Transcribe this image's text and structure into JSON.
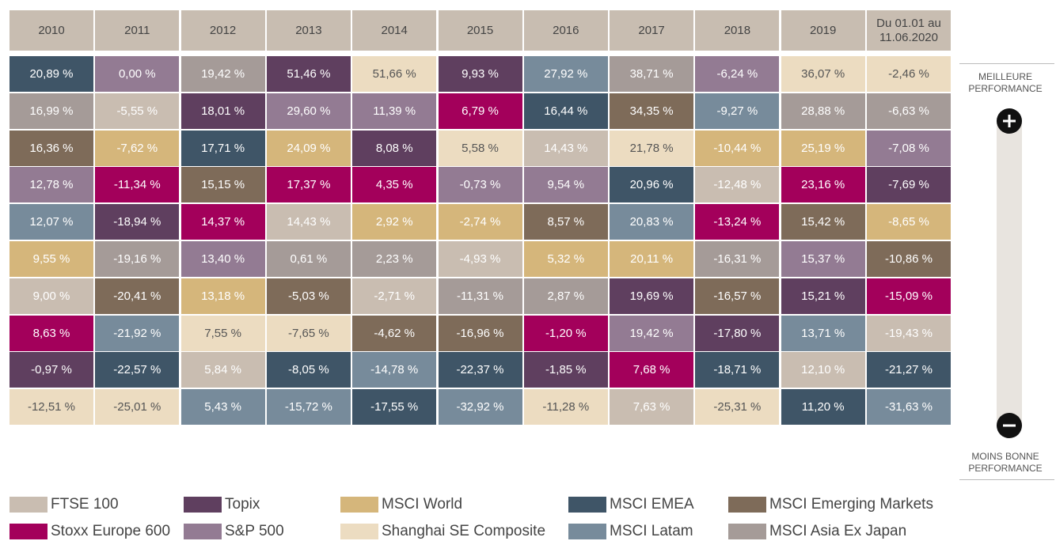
{
  "table": {
    "headers": [
      "2010",
      "2011",
      "2012",
      "2013",
      "2014",
      "2015",
      "2016",
      "2017",
      "2018",
      "2019",
      [
        "Du 01.01 au",
        "11.06.2020"
      ]
    ],
    "columns": [
      [
        [
          "20,89 %",
          3
        ],
        [
          "16,99 %",
          9
        ],
        [
          "16,36 %",
          4
        ],
        [
          "12,78 %",
          6
        ],
        [
          "12,07 %",
          8
        ],
        [
          "9,55 %",
          2
        ],
        [
          "9,00 %",
          0
        ],
        [
          "8,63 %",
          5
        ],
        [
          "-0,97 %",
          1
        ],
        [
          "-12,51 %",
          7
        ]
      ],
      [
        [
          "0,00 %",
          6
        ],
        [
          "-5,55 %",
          0
        ],
        [
          "-7,62 %",
          2
        ],
        [
          "-11,34 %",
          5
        ],
        [
          "-18,94 %",
          1
        ],
        [
          "-19,16 %",
          9
        ],
        [
          "-20,41 %",
          4
        ],
        [
          "-21,92 %",
          8
        ],
        [
          "-22,57 %",
          3
        ],
        [
          "-25,01 %",
          7
        ]
      ],
      [
        [
          "19,42 %",
          9
        ],
        [
          "18,01 %",
          1
        ],
        [
          "17,71 %",
          3
        ],
        [
          "15,15 %",
          4
        ],
        [
          "14,37 %",
          5
        ],
        [
          "13,40 %",
          6
        ],
        [
          "13,18 %",
          2
        ],
        [
          "7,55 %",
          7
        ],
        [
          "5,84 %",
          0
        ],
        [
          "5,43 %",
          8
        ]
      ],
      [
        [
          "51,46 %",
          1
        ],
        [
          "29,60 %",
          6
        ],
        [
          "24,09 %",
          2
        ],
        [
          "17,37 %",
          5
        ],
        [
          "14,43 %",
          0
        ],
        [
          "0,61 %",
          9
        ],
        [
          "-5,03 %",
          4
        ],
        [
          "-7,65 %",
          7
        ],
        [
          "-8,05 %",
          3
        ],
        [
          "-15,72 %",
          8
        ]
      ],
      [
        [
          "51,66 %",
          7
        ],
        [
          "11,39 %",
          6
        ],
        [
          "8,08 %",
          1
        ],
        [
          "4,35 %",
          5
        ],
        [
          "2,92 %",
          2
        ],
        [
          "2,23 %",
          9
        ],
        [
          "-2,71 %",
          0
        ],
        [
          "-4,62 %",
          4
        ],
        [
          "-14,78 %",
          8
        ],
        [
          "-17,55 %",
          3
        ]
      ],
      [
        [
          "9,93 %",
          1
        ],
        [
          "6,79 %",
          5
        ],
        [
          "5,58 %",
          7
        ],
        [
          "-0,73 %",
          6
        ],
        [
          "-2,74 %",
          2
        ],
        [
          "-4,93 %",
          0
        ],
        [
          "-11,31 %",
          9
        ],
        [
          "-16,96 %",
          4
        ],
        [
          "-22,37 %",
          3
        ],
        [
          "-32,92 %",
          8
        ]
      ],
      [
        [
          "27,92 %",
          8
        ],
        [
          "16,44 %",
          3
        ],
        [
          "14,43 %",
          0
        ],
        [
          "9,54 %",
          6
        ],
        [
          "8,57 %",
          4
        ],
        [
          "5,32 %",
          2
        ],
        [
          "2,87 %",
          9
        ],
        [
          "-1,20 %",
          5
        ],
        [
          "-1,85 %",
          1
        ],
        [
          "-11,28 %",
          7
        ]
      ],
      [
        [
          "38,71 %",
          9
        ],
        [
          "34,35 %",
          4
        ],
        [
          "21,78 %",
          7
        ],
        [
          "20,96 %",
          3
        ],
        [
          "20,83 %",
          8
        ],
        [
          "20,11 %",
          2
        ],
        [
          "19,69 %",
          1
        ],
        [
          "19,42 %",
          6
        ],
        [
          "7,68 %",
          5
        ],
        [
          "7,63 %",
          0
        ]
      ],
      [
        [
          "-6,24 %",
          6
        ],
        [
          "-9,27 %",
          8
        ],
        [
          "-10,44 %",
          2
        ],
        [
          "-12,48 %",
          0
        ],
        [
          "-13,24 %",
          5
        ],
        [
          "-16,31 %",
          9
        ],
        [
          "-16,57 %",
          4
        ],
        [
          "-17,80 %",
          1
        ],
        [
          "-18,71 %",
          3
        ],
        [
          "-25,31 %",
          7
        ]
      ],
      [
        [
          "36,07 %",
          7
        ],
        [
          "28,88 %",
          9
        ],
        [
          "25,19 %",
          2
        ],
        [
          "23,16 %",
          5
        ],
        [
          "15,42 %",
          4
        ],
        [
          "15,37 %",
          6
        ],
        [
          "15,21 %",
          1
        ],
        [
          "13,71 %",
          8
        ],
        [
          "12,10 %",
          0
        ],
        [
          "11,20 %",
          3
        ]
      ],
      [
        [
          "-2,46 %",
          7
        ],
        [
          "-6,63 %",
          9
        ],
        [
          "-7,08 %",
          6
        ],
        [
          "-7,69 %",
          1
        ],
        [
          "-8,65 %",
          2
        ],
        [
          "-10,86 %",
          4
        ],
        [
          "-15,09 %",
          5
        ],
        [
          "-19,43 %",
          0
        ],
        [
          "-21,27 %",
          3
        ],
        [
          "-31,63 %",
          8
        ]
      ]
    ]
  },
  "legend": [
    {
      "name": "FTSE 100",
      "color": "#c9bdb1"
    },
    {
      "name": "Topix",
      "color": "#5f3f5f"
    },
    {
      "name": "MSCI World",
      "color": "#d5b67b"
    },
    {
      "name": "MSCI EMEA",
      "color": "#3f5567"
    },
    {
      "name": "MSCI Emerging Markets",
      "color": "#7e6b59"
    },
    {
      "name": "Stoxx Europe 600",
      "color": "#a3005b"
    },
    {
      "name": "S&P 500",
      "color": "#937b93"
    },
    {
      "name": "Shanghai SE Composite",
      "color": "#ecdcc1"
    },
    {
      "name": "MSCI Latam",
      "color": "#778b9b"
    },
    {
      "name": "MSCI Asia Ex Japan",
      "color": "#a59b98"
    }
  ],
  "scale": {
    "top": [
      "MEILLEURE",
      "PERFORMANCE"
    ],
    "bottom": [
      "MOINS BONNE",
      "PERFORMANCE"
    ]
  }
}
